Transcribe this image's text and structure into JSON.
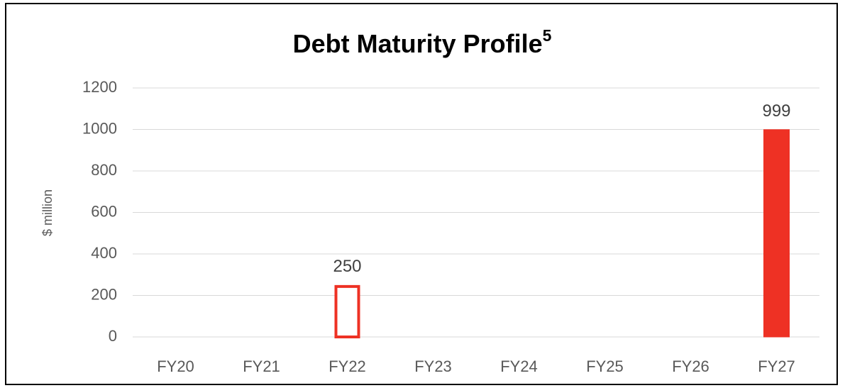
{
  "chart_data": {
    "type": "bar",
    "title": "Debt Maturity Profile",
    "title_superscript": "5",
    "y_label": "$ million",
    "categories": [
      "FY20",
      "FY21",
      "FY22",
      "FY23",
      "FY24",
      "FY25",
      "FY26",
      "FY27"
    ],
    "values": [
      null,
      null,
      250,
      null,
      null,
      null,
      null,
      999
    ],
    "bar_fills": [
      null,
      null,
      "#ffffff",
      null,
      null,
      null,
      null,
      "#ee3124"
    ],
    "color": "#ee3124",
    "ylim": [
      0,
      1200
    ],
    "yticks": [
      0,
      200,
      400,
      600,
      800,
      1000,
      1200
    ],
    "grid": true
  }
}
